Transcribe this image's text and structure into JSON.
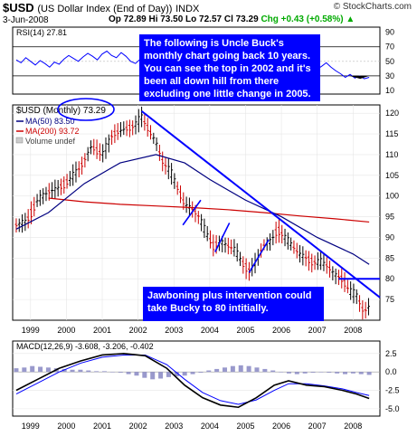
{
  "header": {
    "symbol": "$USD",
    "name": "(US Dollar Index (End of Day))",
    "exchange": "INDX",
    "watermark": "© StockCharts.com",
    "date": "3-Jun-2008",
    "quote": "Op 72.89  Hi 73.50  Lo 72.57  Cl 73.29",
    "change": "Chg +0.43 (+0.58%)",
    "change_arrow": "▲"
  },
  "rsi": {
    "label": "RSI(14) 27.81",
    "ticks": [
      "90",
      "70",
      "50",
      "30",
      "10"
    ],
    "tick_values": [
      90,
      70,
      50,
      30,
      10
    ],
    "ref_lines": [
      70,
      30
    ],
    "range": [
      5,
      97
    ],
    "values": [
      52,
      48,
      55,
      50,
      45,
      51,
      47,
      42,
      49,
      46,
      53,
      58,
      54,
      50,
      56,
      61,
      57,
      52,
      60,
      64,
      58,
      55,
      62,
      57,
      50,
      47,
      53,
      49,
      44,
      50,
      55,
      51,
      46,
      52,
      48,
      43,
      47,
      41,
      45,
      50,
      46,
      40,
      44,
      48,
      43,
      37,
      42,
      46,
      40,
      35,
      39,
      44,
      38,
      34,
      40,
      45,
      39,
      33,
      36,
      41,
      46,
      50,
      44,
      39,
      43,
      48,
      42,
      37,
      33,
      28,
      32,
      27,
      30,
      26,
      28
    ]
  },
  "notes": {
    "top": "The following is Uncle Buck's monthly chart going back 10 years. You can see the top in 2002 and it's been all down hill from there excluding one little change in 2005.",
    "bottom": "Jawboning plus intervention could take Bucky to 80 intitially."
  },
  "legend": {
    "price": "$USD (Monthly) 73.29",
    "ma50": "MA(50) 83.50",
    "ma200": "MA(200) 93.72",
    "volume": "Volume undef"
  },
  "colors": {
    "candle": "#000000",
    "down_candle": "#cc0000",
    "ma50": "#000080",
    "ma200": "#cc0000",
    "trend": "#0000ff",
    "macd": "#000000",
    "signal": "#0000ff",
    "hist": "#9999cc",
    "rsi": "#0000ff",
    "note_bg": "#0000ff"
  },
  "x_axis": {
    "labels": [
      "1999",
      "2000",
      "2001",
      "2002",
      "2003",
      "2004",
      "2005",
      "2006",
      "2007",
      "2008"
    ],
    "years": [
      1999,
      2000,
      2001,
      2002,
      2003,
      2004,
      2005,
      2006,
      2007,
      2008
    ],
    "range": [
      1998.5,
      2008.75
    ]
  },
  "chart_data": {
    "type": "line",
    "series": [
      {
        "name": "$USD (Monthly)",
        "points": [
          [
            1998.6,
            93
          ],
          [
            1998.9,
            94
          ],
          [
            1999.2,
            99
          ],
          [
            1999.5,
            101
          ],
          [
            1999.8,
            102
          ],
          [
            2000.1,
            104
          ],
          [
            2000.4,
            107
          ],
          [
            2000.7,
            112
          ],
          [
            2001.0,
            110
          ],
          [
            2001.3,
            115
          ],
          [
            2001.6,
            116
          ],
          [
            2001.9,
            117
          ],
          [
            2002.1,
            119
          ],
          [
            2002.3,
            116
          ],
          [
            2002.5,
            113
          ],
          [
            2002.7,
            108
          ],
          [
            2002.9,
            106
          ],
          [
            2003.1,
            102
          ],
          [
            2003.3,
            98
          ],
          [
            2003.5,
            97
          ],
          [
            2003.7,
            95
          ],
          [
            2003.9,
            91
          ],
          [
            2004.1,
            88
          ],
          [
            2004.3,
            89
          ],
          [
            2004.5,
            88
          ],
          [
            2004.7,
            87
          ],
          [
            2004.9,
            84
          ],
          [
            2005.1,
            82
          ],
          [
            2005.3,
            84
          ],
          [
            2005.5,
            88
          ],
          [
            2005.7,
            89
          ],
          [
            2005.9,
            92
          ],
          [
            2006.1,
            90
          ],
          [
            2006.3,
            88
          ],
          [
            2006.5,
            86
          ],
          [
            2006.7,
            85
          ],
          [
            2006.9,
            84
          ],
          [
            2007.1,
            84
          ],
          [
            2007.3,
            83
          ],
          [
            2007.5,
            81
          ],
          [
            2007.7,
            80
          ],
          [
            2007.9,
            77
          ],
          [
            2008.1,
            76
          ],
          [
            2008.3,
            72
          ],
          [
            2008.45,
            73.29
          ]
        ]
      },
      {
        "name": "MA(50)",
        "points": [
          [
            1998.6,
            92
          ],
          [
            1999.5,
            96
          ],
          [
            2000.5,
            103
          ],
          [
            2001.5,
            108
          ],
          [
            2002.5,
            110
          ],
          [
            2003.3,
            108
          ],
          [
            2004.0,
            104
          ],
          [
            2005.0,
            99
          ],
          [
            2006.0,
            95
          ],
          [
            2007.0,
            90
          ],
          [
            2008.0,
            86
          ],
          [
            2008.45,
            83.5
          ]
        ]
      },
      {
        "name": "MA(200)",
        "points": [
          [
            1999.5,
            99.5
          ],
          [
            2000.5,
            98.6
          ],
          [
            2001.5,
            98
          ],
          [
            2002.5,
            97.6
          ],
          [
            2003.5,
            97.2
          ],
          [
            2004.5,
            96.7
          ],
          [
            2005.5,
            96
          ],
          [
            2006.5,
            95.2
          ],
          [
            2007.5,
            94.5
          ],
          [
            2008.45,
            93.72
          ]
        ]
      }
    ],
    "y_ticks": [
      120,
      115,
      110,
      105,
      100,
      95,
      90,
      85,
      80,
      75
    ],
    "ylim": [
      70,
      122
    ],
    "trend_lines": [
      {
        "from": [
          2002.1,
          120.5
        ],
        "to": [
          2008.75,
          75.5
        ]
      },
      {
        "from": [
          2007.6,
          80
        ],
        "to": [
          2008.75,
          80
        ]
      },
      {
        "from": [
          2003.25,
          93
        ],
        "to": [
          2003.75,
          99
        ]
      },
      {
        "from": [
          2004.15,
          86.5
        ],
        "to": [
          2004.55,
          93.5
        ]
      },
      {
        "from": [
          2005.1,
          81.5
        ],
        "to": [
          2005.65,
          89.5
        ]
      }
    ],
    "macd": {
      "label": "MACD(12,26,9) -3.608, -3.206, -0.402",
      "ticks": [
        "2.5",
        "0.0",
        "-2.5",
        "-5.0"
      ],
      "tick_values": [
        2.5,
        0,
        -2.5,
        -5
      ],
      "range": [
        -6,
        4.2
      ],
      "macd_line": [
        [
          1998.6,
          -2.5
        ],
        [
          1999.2,
          -1
        ],
        [
          1999.8,
          0.5
        ],
        [
          2000.4,
          1.5
        ],
        [
          2001.0,
          2.3
        ],
        [
          2001.6,
          2.5
        ],
        [
          2002.2,
          2.2
        ],
        [
          2002.8,
          0.5
        ],
        [
          2003.3,
          -1.8
        ],
        [
          2003.8,
          -3.5
        ],
        [
          2004.3,
          -4.5
        ],
        [
          2004.8,
          -4.8
        ],
        [
          2005.3,
          -3.5
        ],
        [
          2005.8,
          -1.8
        ],
        [
          2006.2,
          -1.2
        ],
        [
          2006.7,
          -1.8
        ],
        [
          2007.2,
          -2
        ],
        [
          2007.7,
          -2.5
        ],
        [
          2008.1,
          -3
        ],
        [
          2008.45,
          -3.608
        ]
      ],
      "signal_line": [
        [
          1998.6,
          -3
        ],
        [
          1999.2,
          -1.5
        ],
        [
          1999.8,
          0
        ],
        [
          2000.4,
          1.2
        ],
        [
          2001.0,
          2
        ],
        [
          2001.6,
          2.3
        ],
        [
          2002.2,
          2.3
        ],
        [
          2002.8,
          1
        ],
        [
          2003.3,
          -1
        ],
        [
          2003.8,
          -2.8
        ],
        [
          2004.3,
          -3.9
        ],
        [
          2004.8,
          -4.4
        ],
        [
          2005.3,
          -3.8
        ],
        [
          2005.8,
          -2.5
        ],
        [
          2006.2,
          -1.6
        ],
        [
          2006.7,
          -1.6
        ],
        [
          2007.2,
          -1.9
        ],
        [
          2007.7,
          -2.3
        ],
        [
          2008.1,
          -2.8
        ],
        [
          2008.45,
          -3.206
        ]
      ],
      "histogram": [
        0.5,
        0.6,
        0.8,
        0.7,
        0.6,
        0.5,
        0.4,
        0.3,
        0.3,
        0.2,
        0.1,
        0.1,
        0.0,
        -0.1,
        -0.3,
        -0.5,
        -0.8,
        -1.0,
        -0.9,
        -0.7,
        -0.6,
        -0.5,
        -0.3,
        -0.1,
        0.2,
        0.4,
        0.6,
        0.8,
        0.9,
        0.8,
        0.6,
        0.4,
        0.2,
        0.0,
        -0.2,
        -0.3,
        -0.2,
        -0.1,
        0.0,
        -0.1,
        -0.2,
        -0.3,
        -0.2,
        -0.3,
        -0.4
      ]
    }
  }
}
